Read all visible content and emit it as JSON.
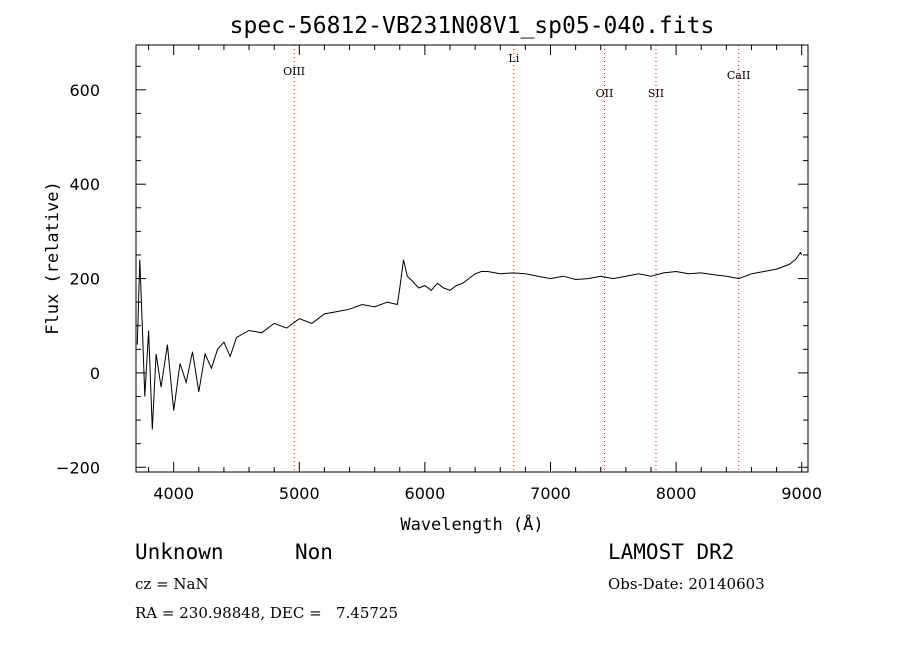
{
  "chart_data": {
    "type": "line",
    "title": "spec-56812-VB231N08V1_sp05-040.fits",
    "xlabel": "Wavelength (Å)",
    "ylabel": "Flux (relative)",
    "xlim": [
      3700,
      9050
    ],
    "ylim": [
      -210,
      695
    ],
    "xticks": [
      4000,
      5000,
      6000,
      7000,
      8000,
      9000
    ],
    "yticks": [
      -200,
      0,
      200,
      400,
      600
    ],
    "grid": false,
    "line_color": "#000000",
    "marker_color": "#ff0000",
    "series": [
      {
        "x": [
          3710,
          3730,
          3750,
          3770,
          3800,
          3830,
          3860,
          3900,
          3950,
          4000,
          4050,
          4100,
          4150,
          4200,
          4250,
          4300,
          4350,
          4400,
          4450,
          4500,
          4600,
          4700,
          4800,
          4900,
          5000,
          5100,
          5200,
          5300,
          5400,
          5500,
          5600,
          5700,
          5780,
          5800,
          5830,
          5860,
          5900,
          5950,
          6000,
          6050,
          6100,
          6150,
          6200,
          6250,
          6300,
          6350,
          6400,
          6450,
          6500,
          6600,
          6700,
          6800,
          6900,
          7000,
          7100,
          7200,
          7300,
          7400,
          7500,
          7600,
          7700,
          7800,
          7900,
          8000,
          8100,
          8200,
          8300,
          8400,
          8500,
          8600,
          8700,
          8800,
          8900,
          8950,
          8990,
          9000
        ],
        "y": [
          60,
          240,
          100,
          -50,
          90,
          -120,
          40,
          -30,
          60,
          -80,
          20,
          -20,
          45,
          -40,
          40,
          10,
          50,
          65,
          35,
          75,
          90,
          85,
          105,
          95,
          115,
          105,
          125,
          130,
          135,
          145,
          140,
          150,
          145,
          180,
          240,
          205,
          195,
          180,
          185,
          175,
          190,
          180,
          175,
          185,
          190,
          200,
          210,
          215,
          215,
          210,
          212,
          210,
          205,
          200,
          205,
          198,
          200,
          205,
          200,
          205,
          210,
          205,
          212,
          215,
          210,
          212,
          208,
          205,
          200,
          210,
          215,
          220,
          230,
          240,
          255,
          250
        ]
      }
    ],
    "lines": [
      {
        "label": "OIII",
        "x": 4959
      },
      {
        "label": "Li",
        "x": 6708
      },
      {
        "label": "OII",
        "x": 7430
      },
      {
        "label": "SII",
        "x": 7840
      },
      {
        "label": "CaII",
        "x": 8498
      }
    ]
  },
  "info": {
    "class": "Unknown",
    "subclass": "Non",
    "survey": "LAMOST DR2",
    "cz": "cz = NaN",
    "obs_date": "Obs-Date: 20140603",
    "radec": "RA = 230.98848, DEC =   7.45725"
  }
}
